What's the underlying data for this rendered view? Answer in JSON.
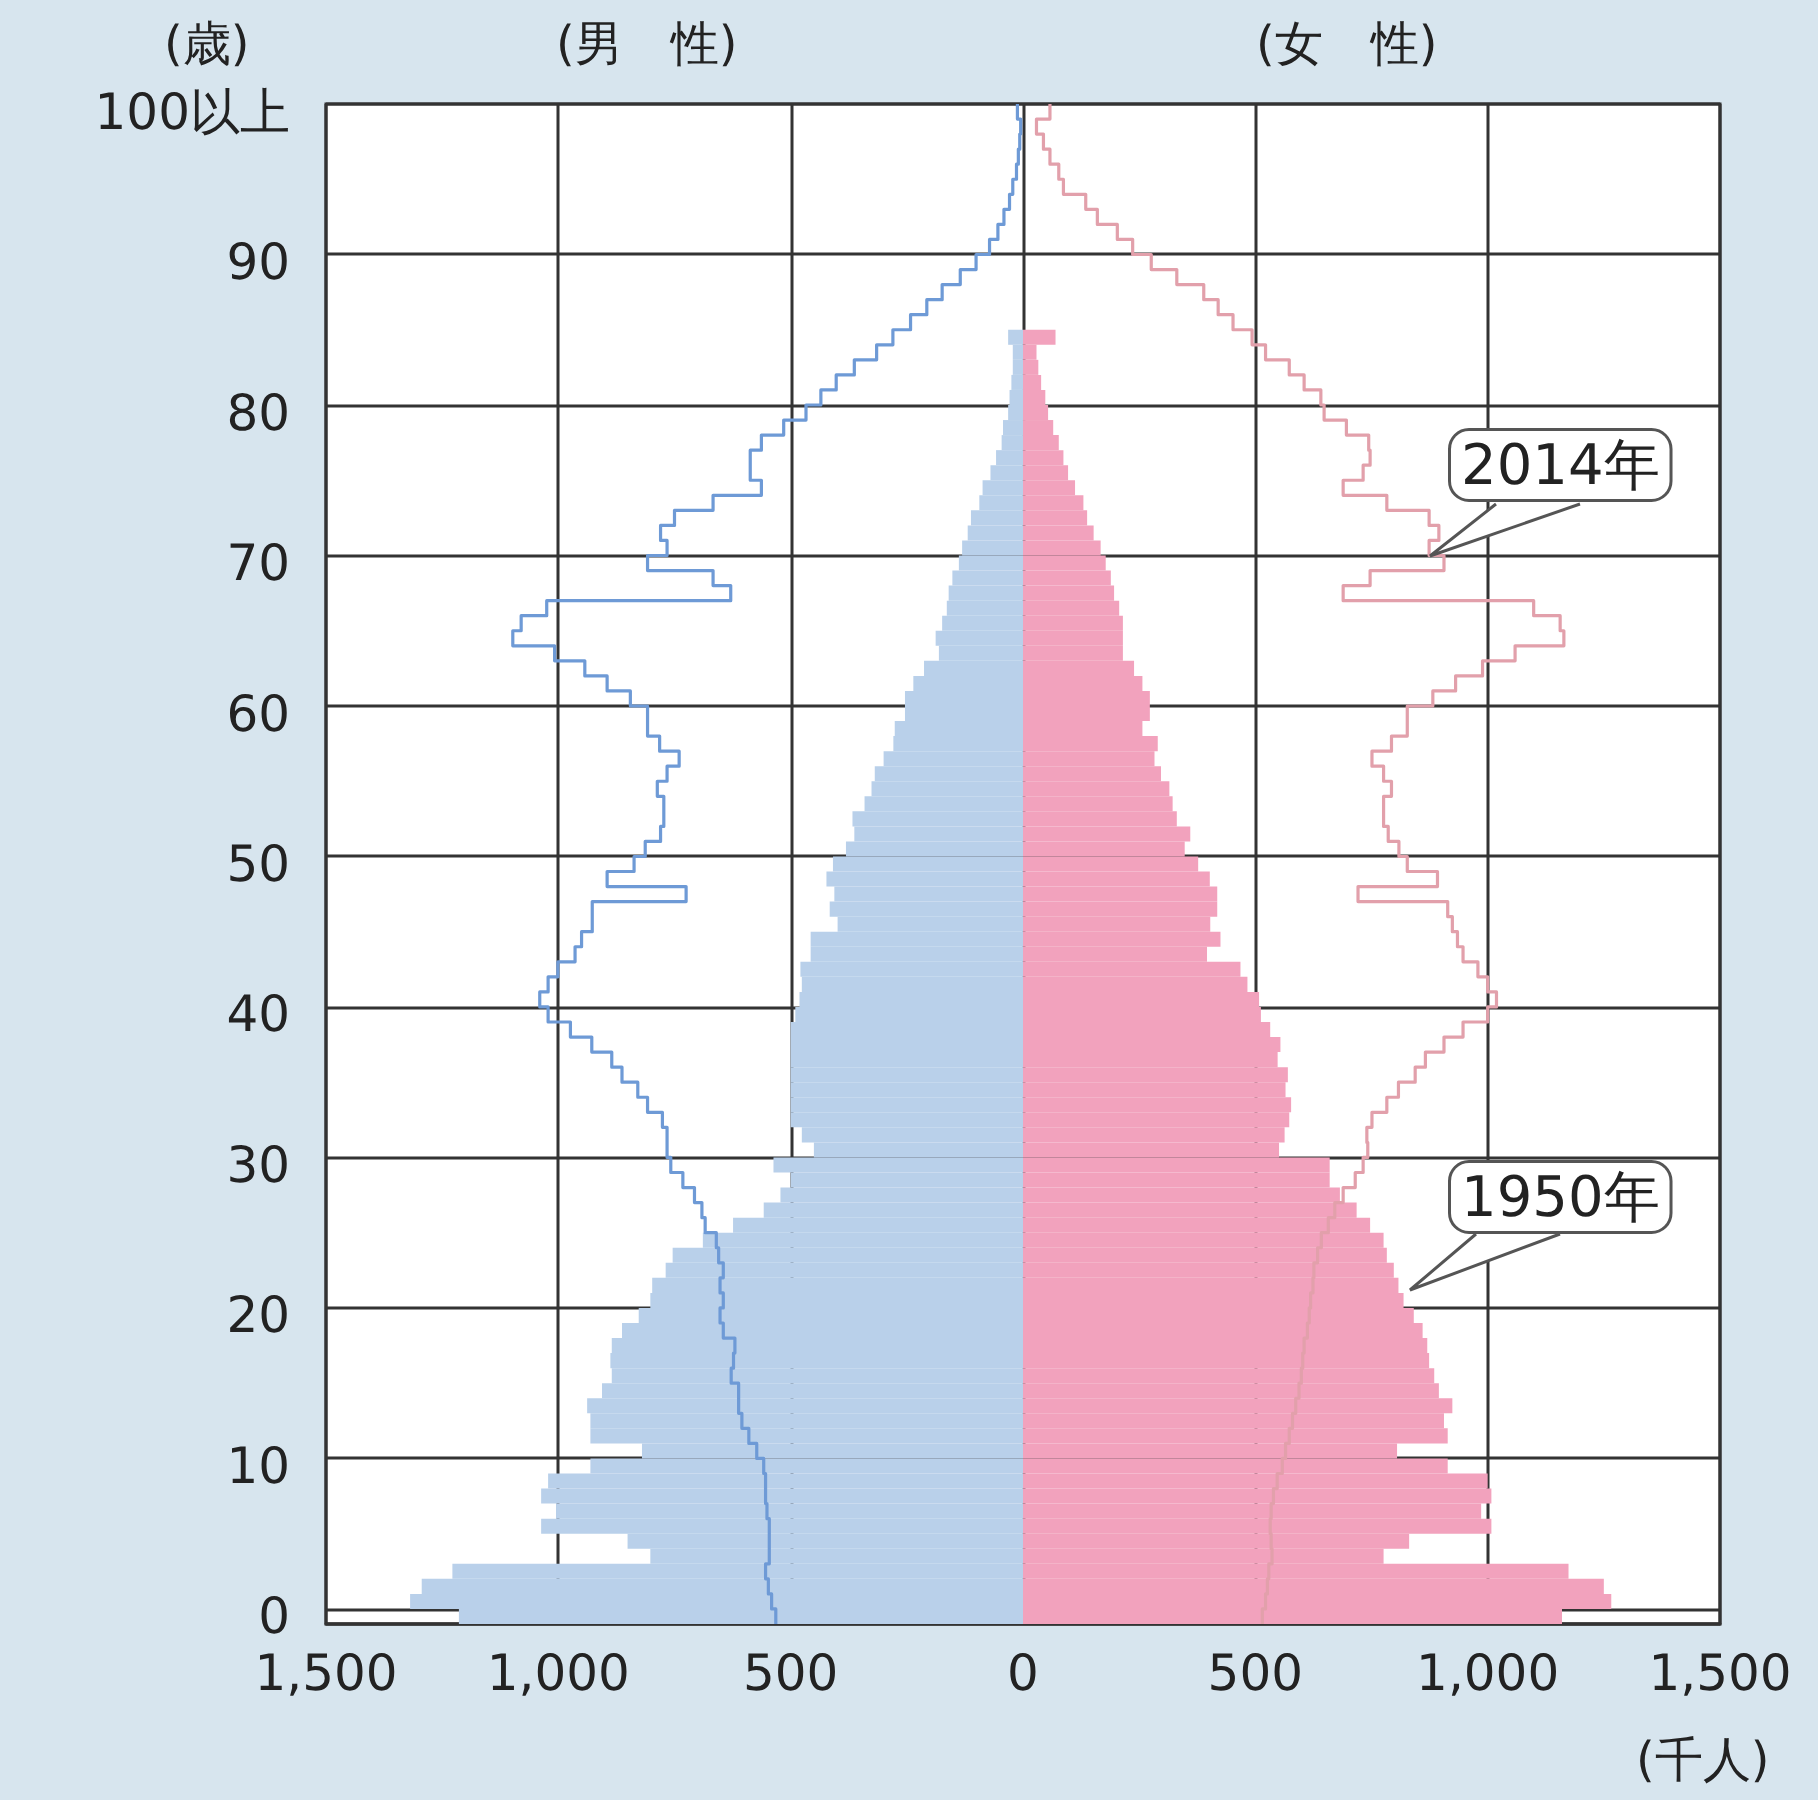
{
  "chart_data": {
    "type": "bar",
    "orientation": "horizontal",
    "stacked": true,
    "xlabel": "(千人)",
    "ylabel": "(歳)",
    "annotations": [
      "(男　性)",
      "(女　性)",
      "2014年",
      "1950年"
    ],
    "categories": [
      "100以上",
      null,
      null,
      null,
      null,
      null,
      null,
      null,
      null,
      null,
      "90",
      null,
      null,
      null,
      null,
      null,
      null,
      null,
      null,
      null,
      "80",
      null,
      null,
      null,
      null,
      null,
      null,
      null,
      null,
      null,
      "70",
      null,
      null,
      null,
      null,
      null,
      null,
      null,
      null,
      null,
      "60",
      null,
      null,
      null,
      null,
      null,
      null,
      null,
      null,
      null,
      "50",
      null,
      null,
      null,
      null,
      null,
      null,
      null,
      null,
      null,
      "40",
      null,
      null,
      null,
      null,
      null,
      null,
      null,
      null,
      null,
      "30",
      null,
      null,
      null,
      null,
      null,
      null,
      null,
      null,
      null,
      "20",
      null,
      null,
      null,
      null,
      null,
      null,
      null,
      null,
      null,
      "10",
      null,
      null,
      null,
      null,
      null,
      null,
      null,
      null,
      null,
      "0"
    ],
    "series": [
      {
        "color": "#b9d0ea",
        "values": [
          null,
          null,
          null,
          null,
          null,
          null,
          null,
          null,
          null,
          null,
          null,
          null,
          null,
          null,
          null,
          -32,
          -22,
          -22,
          -25,
          -29,
          -32,
          -43,
          -46,
          -58,
          -70,
          -87,
          -94,
          -112,
          -119,
          -131,
          -138,
          -152,
          -160,
          -164,
          -174,
          -188,
          -181,
          -213,
          -236,
          -254,
          -254,
          -276,
          -279,
          -300,
          -319,
          -326,
          -341,
          -367,
          -363,
          -381,
          -409,
          -423,
          -406,
          -416,
          -399,
          -457,
          -457,
          -479,
          -476,
          -481,
          -490,
          -500,
          -500,
          -500,
          -500,
          -500,
          -500,
          -500,
          -476,
          -450,
          -537,
          -500,
          -522,
          -558,
          -624,
          -689,
          -754,
          -769,
          -798,
          -802,
          -827,
          -863,
          -885,
          -888,
          -885,
          -906,
          -938,
          -931,
          -931,
          -820,
          -931,
          -1022,
          -1037,
          -1005,
          -1037,
          -851,
          -802,
          -1228,
          -1294,
          -1319,
          -1214
        ]
      },
      {
        "color": "#f2a2bd",
        "values": [
          null,
          null,
          null,
          null,
          null,
          null,
          null,
          null,
          null,
          null,
          null,
          null,
          null,
          null,
          null,
          70,
          29,
          33,
          39,
          48,
          54,
          65,
          77,
          87,
          97,
          112,
          130,
          138,
          152,
          167,
          178,
          189,
          196,
          207,
          215,
          215,
          215,
          239,
          257,
          273,
          273,
          257,
          290,
          283,
          297,
          315,
          322,
          331,
          360,
          348,
          377,
          402,
          418,
          418,
          403,
          425,
          396,
          468,
          483,
          508,
          512,
          532,
          554,
          548,
          570,
          565,
          577,
          573,
          563,
          551,
          660,
          660,
          682,
          718,
          747,
          776,
          783,
          798,
          808,
          819,
          841,
          860,
          870,
          874,
          885,
          895,
          924,
          906,
          914,
          805,
          914,
          1000,
          1008,
          986,
          1008,
          831,
          776,
          1174,
          1250,
          1266,
          1160
        ]
      },
      {
        "type": "step",
        "color": "#6e9ad6",
        "values": [
          -12,
          -5,
          -7,
          -10,
          -14,
          -22,
          -29,
          -41,
          -54,
          -72,
          -101,
          -135,
          -174,
          -207,
          -242,
          -280,
          -315,
          -363,
          -402,
          -435,
          -467,
          -515,
          -563,
          -587,
          -587,
          -563,
          -667,
          -750,
          -780,
          -766,
          -808,
          -667,
          -629,
          -1025,
          -1080,
          -1098,
          -1008,
          -943,
          -895,
          -845,
          -808,
          -808,
          -782,
          -740,
          -766,
          -787,
          -773,
          -773,
          -780,
          -813,
          -837,
          -895,
          -725,
          -927,
          -927,
          -950,
          -964,
          -1001,
          -1022,
          -1040,
          -1022,
          -974,
          -928,
          -885,
          -863,
          -829,
          -808,
          -776,
          -766,
          -766,
          -758,
          -732,
          -707,
          -691,
          -684,
          -660,
          -655,
          -645,
          -652,
          -645,
          -652,
          -645,
          -620,
          -623,
          -628,
          -612,
          -612,
          -605,
          -590,
          -573,
          -558,
          -554,
          -554,
          -551,
          -546,
          -546,
          -546,
          -554,
          -548,
          -541,
          -532
        ]
      },
      {
        "type": "step",
        "color": "#e2a0ab",
        "values": [
          58,
          29,
          44,
          58,
          77,
          87,
          135,
          160,
          203,
          236,
          276,
          331,
          389,
          420,
          452,
          493,
          522,
          573,
          605,
          641,
          648,
          696,
          744,
          747,
          732,
          689,
          783,
          874,
          895,
          874,
          906,
          747,
          689,
          1099,
          1156,
          1164,
          1059,
          989,
          931,
          882,
          827,
          827,
          793,
          751,
          776,
          793,
          776,
          776,
          786,
          809,
          827,
          892,
          721,
          914,
          924,
          935,
          947,
          979,
          1000,
          1019,
          1000,
          947,
          906,
          866,
          844,
          808,
          783,
          751,
          740,
          742,
          732,
          715,
          689,
          671,
          657,
          642,
          634,
          626,
          624,
          619,
          616,
          612,
          605,
          602,
          599,
          594,
          587,
          580,
          573,
          565,
          558,
          547,
          539,
          534,
          532,
          534,
          536,
          529,
          526,
          522,
          515
        ]
      }
    ],
    "xlim": [
      -1500,
      1500
    ],
    "xticks": [
      {
        "value": -1500,
        "label": "1,500"
      },
      {
        "value": -1000,
        "label": "1,000"
      },
      {
        "value": -500,
        "label": "500"
      },
      0,
      500,
      {
        "value": 1000,
        "label": "1,000"
      },
      {
        "value": 1500,
        "label": "1,500"
      }
    ],
    "grid": true
  }
}
